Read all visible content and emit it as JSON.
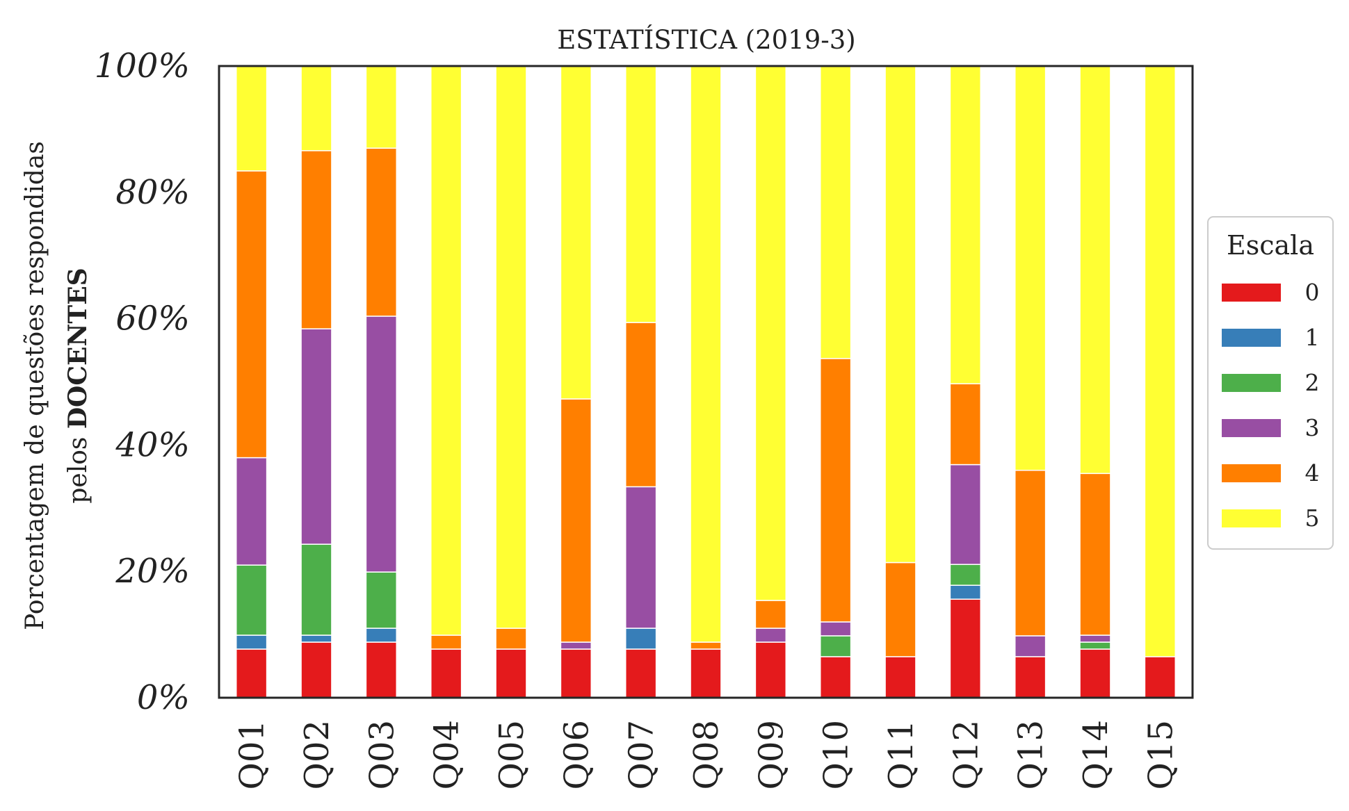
{
  "chart_data": {
    "type": "bar",
    "stacked": true,
    "title": "ESTATÍSTICA (2019-3)",
    "ylabel_line1": "Porcentagem de questões respondidas",
    "ylabel_line2_prefix": "pelos ",
    "ylabel_line2_bold": "DOCENTES",
    "ylim": [
      0,
      100
    ],
    "yticks": [
      "0%",
      "20%",
      "40%",
      "60%",
      "80%",
      "100%"
    ],
    "grid": false,
    "legend_title": "Escala",
    "legend_position": "right",
    "categories": [
      "Q01",
      "Q02",
      "Q03",
      "Q04",
      "Q05",
      "Q06",
      "Q07",
      "Q08",
      "Q09",
      "Q10",
      "Q11",
      "Q12",
      "Q13",
      "Q14",
      "Q15"
    ],
    "series": [
      {
        "name": "0",
        "color": "#e41a1c",
        "values": [
          7.7,
          8.8,
          8.8,
          7.7,
          7.7,
          7.7,
          7.7,
          7.7,
          8.8,
          6.5,
          6.5,
          15.6,
          6.5,
          7.7,
          6.5
        ]
      },
      {
        "name": "1",
        "color": "#377eb8",
        "values": [
          2.2,
          1.1,
          2.2,
          0,
          0,
          0,
          3.3,
          0,
          0,
          0,
          0,
          2.2,
          0,
          0,
          0
        ]
      },
      {
        "name": "2",
        "color": "#4daf4a",
        "values": [
          11.1,
          14.4,
          8.9,
          0,
          0,
          0,
          0,
          0,
          0,
          3.3,
          0,
          3.3,
          0,
          1.1,
          0
        ]
      },
      {
        "name": "3",
        "color": "#984ea3",
        "values": [
          17.0,
          34.1,
          40.5,
          0,
          0,
          1.1,
          22.4,
          0,
          2.2,
          2.2,
          0,
          15.8,
          3.3,
          1.1,
          0
        ]
      },
      {
        "name": "4",
        "color": "#ff7f00",
        "values": [
          45.4,
          28.2,
          26.6,
          2.2,
          3.3,
          38.5,
          26.0,
          1.1,
          4.4,
          41.7,
          14.9,
          12.8,
          26.2,
          25.6,
          0
        ]
      },
      {
        "name": "5",
        "color": "#ffff33",
        "values": [
          16.6,
          13.4,
          13.0,
          90.1,
          89.0,
          52.7,
          40.6,
          91.2,
          84.6,
          46.3,
          78.6,
          50.3,
          64.0,
          64.5,
          93.5
        ]
      }
    ]
  }
}
